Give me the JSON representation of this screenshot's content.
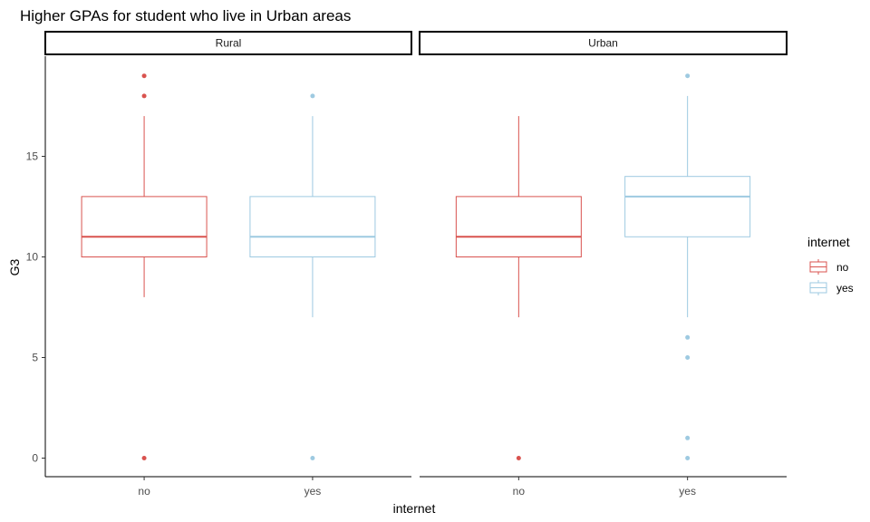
{
  "chart_data": {
    "type": "boxplot",
    "title": "Higher GPAs for student who live in Urban areas",
    "xlabel": "internet",
    "ylabel": "G3",
    "ylim": [
      -1,
      20
    ],
    "y_ticks": [
      0,
      5,
      10,
      15
    ],
    "categories": [
      "no",
      "yes"
    ],
    "colors": {
      "no": "#d9534f",
      "yes": "#9ecae1"
    },
    "legend": {
      "title": "internet",
      "position": "right",
      "entries": [
        "no",
        "yes"
      ]
    },
    "grid": false,
    "facets": [
      {
        "label": "Rural",
        "boxes": [
          {
            "category": "no",
            "whisker_low": 8,
            "q1": 10,
            "median": 11,
            "q3": 13,
            "whisker_high": 17,
            "outliers": [
              0,
              18,
              19
            ]
          },
          {
            "category": "yes",
            "whisker_low": 7,
            "q1": 10,
            "median": 11,
            "q3": 13,
            "whisker_high": 17,
            "outliers": [
              0,
              18
            ]
          }
        ]
      },
      {
        "label": "Urban",
        "boxes": [
          {
            "category": "no",
            "whisker_low": 7,
            "q1": 10,
            "median": 11,
            "q3": 13,
            "whisker_high": 17,
            "outliers": [
              0
            ]
          },
          {
            "category": "yes",
            "whisker_low": 7,
            "q1": 11,
            "median": 13,
            "q3": 14,
            "whisker_high": 18,
            "outliers": [
              0,
              1,
              5,
              6,
              19
            ]
          }
        ]
      }
    ]
  }
}
